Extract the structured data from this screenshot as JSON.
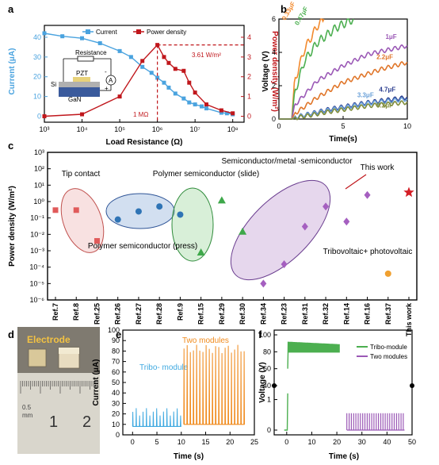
{
  "panels": {
    "a": "a",
    "b": "b",
    "c": "c",
    "d": "d",
    "e": "e",
    "f": "f"
  },
  "colors": {
    "current": "#4aa3df",
    "power": "#c0171c",
    "tribo": "#4caf50",
    "two_modules": "#9b59b6",
    "e_tribo": "#3fa9e0",
    "e_two": "#f08a1c",
    "refs_red": "#e05a5a",
    "refs_blue": "#2f74b5",
    "refs_green": "#3ea84a",
    "refs_purple": "#a55fc0",
    "refs_orange": "#f0a030"
  },
  "chart_data": [
    {
      "id": "a",
      "type": "line",
      "xlabel": "Load Resistance (Ω)",
      "ylabel_left": "Current (μA)",
      "ylabel_right": "Power density (W/m²)",
      "xscale": "log",
      "xlim": [
        1000,
        200000000
      ],
      "ylim_left": [
        -3,
        46
      ],
      "ylim_right": [
        -0.3,
        4.6
      ],
      "x_ticks": [
        "10³",
        "10⁴",
        "10⁵",
        "10⁶",
        "10⁷",
        "10⁸"
      ],
      "y_ticks_left": [
        "0",
        "10",
        "20",
        "30",
        "40"
      ],
      "y_ticks_right": [
        "0",
        "1",
        "2",
        "3",
        "4"
      ],
      "annotations": [
        "3.61 W/m²",
        "1 MΩ"
      ],
      "inset_labels": [
        "Resistance",
        "PZT",
        "Si",
        "GaN",
        "A",
        "-",
        "+"
      ],
      "legend": "top",
      "series": [
        {
          "name": "Current",
          "axis": "left",
          "x": [
            1000,
            3000,
            10000,
            30000,
            100000,
            200000,
            400000,
            700000,
            1000000,
            1500000,
            2000000,
            3000000,
            5000000,
            7000000,
            10000000,
            15000000,
            20000000,
            50000000,
            70000000,
            100000000
          ],
          "y": [
            42,
            40.5,
            39.5,
            37,
            33,
            30,
            25,
            22,
            19.5,
            17,
            14.5,
            11.5,
            9,
            7,
            6,
            5,
            4,
            1.8,
            1.5,
            1
          ]
        },
        {
          "name": "Power density",
          "axis": "right",
          "x": [
            1000,
            10000,
            100000,
            400000,
            1000000,
            1500000,
            2000000,
            3000000,
            5000000,
            7000000,
            10000000,
            20000000,
            50000000,
            100000000
          ],
          "y": [
            0,
            0.1,
            1.0,
            2.8,
            3.61,
            3.0,
            2.7,
            2.4,
            2.3,
            1.7,
            1.2,
            0.6,
            0.3,
            0.15
          ]
        }
      ]
    },
    {
      "id": "b",
      "type": "line",
      "xlabel": "Time(s)",
      "ylabel": "Voltage (V)",
      "xlim": [
        0,
        10
      ],
      "ylim": [
        0,
        6
      ],
      "x_ticks": [
        "0",
        "5",
        "10"
      ],
      "y_ticks": [
        "0",
        "2",
        "4",
        "6"
      ],
      "series": [
        {
          "name": "0.33μF",
          "color": "#f28a2e",
          "x": [
            0,
            1,
            1.2,
            2,
            3,
            3.5
          ],
          "y": [
            0,
            0,
            2.2,
            4.2,
            5.6,
            6
          ]
        },
        {
          "name": "0.47μF",
          "color": "#4caf50",
          "x": [
            0,
            1,
            1.2,
            2,
            3,
            4.5,
            5.8
          ],
          "y": [
            0,
            0,
            1.5,
            3.5,
            4.6,
            5.5,
            6
          ]
        },
        {
          "name": "1μF",
          "color": "#9b59b6",
          "x": [
            0,
            1,
            1.2,
            3,
            5,
            7,
            10
          ],
          "y": [
            0,
            0,
            0.8,
            2.3,
            3.2,
            3.9,
            4.4
          ]
        },
        {
          "name": "2.2μF",
          "color": "#e0762a",
          "x": [
            0,
            1,
            1.2,
            3,
            5,
            8,
            10
          ],
          "y": [
            0,
            0,
            0.3,
            1.3,
            2.2,
            3.0,
            3.4
          ]
        },
        {
          "name": "4.7μF",
          "color": "#2c3e8f",
          "x": [
            0,
            1,
            1.2,
            4,
            7,
            10
          ],
          "y": [
            0,
            0,
            0.1,
            0.6,
            1.0,
            1.3
          ]
        },
        {
          "name": "3.3μF",
          "color": "#6aa0d8",
          "x": [
            0,
            1,
            1.2,
            4,
            7,
            10
          ],
          "y": [
            0,
            0,
            0.1,
            0.55,
            0.95,
            1.2
          ]
        },
        {
          "name": "8.2μF",
          "color": "#7f8c3a",
          "x": [
            0,
            1,
            1.2,
            4,
            7,
            10
          ],
          "y": [
            0,
            0,
            0.05,
            0.45,
            0.8,
            1.0
          ]
        }
      ]
    },
    {
      "id": "c",
      "type": "scatter",
      "ylabel": "Power density (W/m²)",
      "yscale": "log",
      "ylim": [
        1e-06,
        1000
      ],
      "y_ticks": [
        "10⁻⁶",
        "10⁻⁵",
        "10⁻⁴",
        "10⁻³",
        "10⁻²",
        "10⁻¹",
        "10⁰",
        "10¹",
        "10²",
        "10³"
      ],
      "categories": [
        "Ref.7",
        "Ref.8",
        "Ref.25",
        "Ref.26",
        "Ref.27",
        "Ref.28",
        "Ref.9",
        "Ref.15",
        "Ref.29",
        "Ref.30",
        "Ref.34",
        "Ref.23",
        "Ref.31",
        "Ref.32",
        "Ref.14",
        "Ref.16",
        "Ref.37",
        "This work"
      ],
      "groups": [
        {
          "name": "Tip contact",
          "marker": "square",
          "points": [
            [
              0,
              0.3
            ],
            [
              1,
              0.3
            ],
            [
              2,
              0.004
            ]
          ]
        },
        {
          "name": "Polymer semiconductor (press)",
          "marker": "circle",
          "points": [
            [
              3,
              0.08
            ],
            [
              4,
              0.25
            ],
            [
              5,
              0.5
            ],
            [
              6,
              0.16
            ]
          ]
        },
        {
          "name": "Polymer semiconductor (slide)",
          "marker": "triangle",
          "points": [
            [
              7,
              0.0008
            ],
            [
              8,
              1.2
            ],
            [
              9,
              0.015
            ]
          ]
        },
        {
          "name": "Semiconductor/metal-semiconductor",
          "marker": "diamond",
          "points": [
            [
              10,
              1e-05
            ],
            [
              11,
              0.00015
            ],
            [
              12,
              0.03
            ],
            [
              13,
              0.5
            ],
            [
              14,
              0.06
            ],
            [
              15,
              2.5
            ]
          ]
        },
        {
          "name": "Tribovoltaic+ photovoltaic",
          "marker": "circle",
          "points": [
            [
              16,
              4e-05
            ]
          ]
        },
        {
          "name": "This work",
          "marker": "star",
          "points": [
            [
              17,
              3.61
            ]
          ]
        }
      ],
      "labels": [
        "Tip contact",
        "Polymer semiconductor (press)",
        "Polymer semiconductor (slide)",
        "Semiconductor/metal -semiconductor",
        "This work",
        "Tribovoltaic+ photovoltaic"
      ]
    },
    {
      "id": "e",
      "type": "line",
      "xlabel": "Time (s)",
      "ylabel": "Current (μA)",
      "xlim": [
        -2,
        25
      ],
      "ylim": [
        0,
        100
      ],
      "x_ticks": [
        "0",
        "5",
        "10",
        "15",
        "20",
        "25"
      ],
      "y_ticks": [
        "0",
        "10",
        "20",
        "30",
        "40",
        "50",
        "60",
        "70",
        "80",
        "90",
        "100"
      ],
      "series": [
        {
          "name": "Tribo-module",
          "color": "#3fa9e0",
          "period_s": 0.7,
          "x_range": [
            0,
            10
          ],
          "baseline": 8,
          "peak": 22
        },
        {
          "name": "Two modules",
          "color": "#f08a1c",
          "period_s": 0.65,
          "x_range": [
            10.5,
            23
          ],
          "baseline": 10,
          "peak": 82
        }
      ],
      "annotations": [
        "Tribo- module",
        "Two modules"
      ]
    },
    {
      "id": "f",
      "type": "line",
      "xlabel": "Time (s)",
      "ylabel": "Voltage (V)",
      "xlim": [
        -5,
        50
      ],
      "y_ticks": [
        "0",
        "1",
        "40",
        "60",
        "80",
        "100"
      ],
      "legend": "top-right",
      "series": [
        {
          "name": "Tribo-module",
          "color": "#4caf50",
          "x_range": [
            0,
            21
          ],
          "level": 85
        },
        {
          "name": "Two modules",
          "color": "#9b59b6",
          "x_range": [
            24,
            47
          ],
          "level": 0.55
        }
      ]
    }
  ],
  "photo": {
    "electrode_label": "Electrode",
    "ruler_labels": [
      "0.5",
      "mm",
      "1",
      "2"
    ]
  }
}
